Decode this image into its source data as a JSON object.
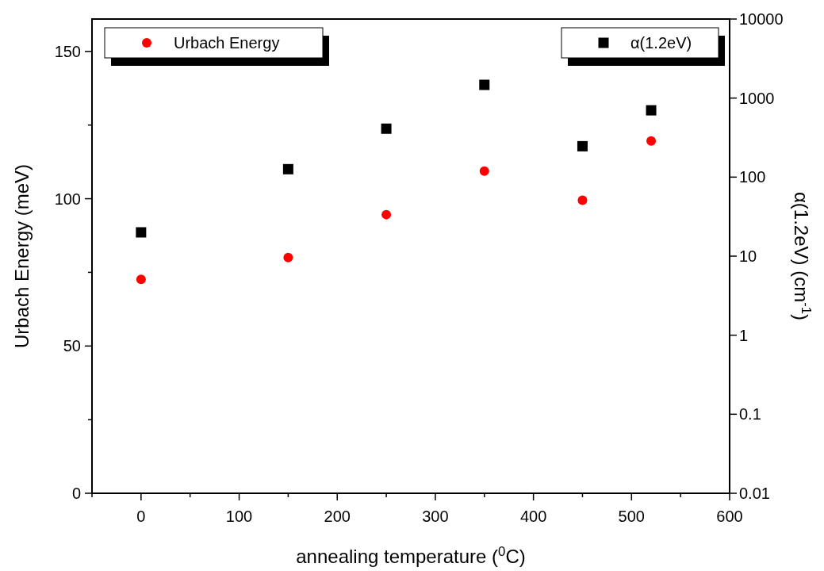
{
  "chart_data": {
    "type": "scatter",
    "xlabel": "annealing temperature ($^{0}$C)",
    "ylabel": "Urbach Energy (meV)",
    "y2label": "α(1.2eV) (cm$^{-1}$)",
    "x": [
      0,
      150,
      250,
      350,
      450,
      520
    ],
    "xlim": [
      -50,
      600
    ],
    "xticks": [
      {
        "value": -50,
        "label": null
      },
      0,
      {
        "value": 50,
        "label": null
      },
      100,
      {
        "value": 150,
        "label": null
      },
      200,
      {
        "value": 250,
        "label": null
      },
      300,
      {
        "value": 350,
        "label": null
      },
      400,
      {
        "value": 450,
        "label": null
      },
      500,
      {
        "value": 550,
        "label": null
      },
      600
    ],
    "ylim": [
      0,
      161
    ],
    "yticks": [
      0,
      {
        "value": 25,
        "label": null
      },
      50,
      {
        "value": 75,
        "label": null
      },
      100,
      {
        "value": 125,
        "label": null
      },
      150
    ],
    "y2lim": [
      0.01,
      10000
    ],
    "y2ticks": [
      0.01,
      0.1,
      1,
      10,
      100,
      1000,
      10000
    ],
    "log": "y2",
    "legend": "top",
    "series": [
      {
        "name": "Urbach Energy",
        "color": "#ff0000",
        "marker": "circle",
        "values": [
          72.6,
          80,
          94.6,
          109.4,
          99.5,
          119.6
        ]
      },
      {
        "name": "α(1.2eV)",
        "color": "#000000",
        "marker": "square",
        "axis": "y2",
        "values": [
          20,
          126,
          410,
          1470,
          246,
          700
        ]
      }
    ]
  }
}
